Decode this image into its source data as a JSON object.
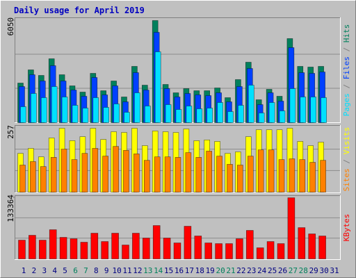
{
  "chart_data": [
    {
      "type": "bar",
      "title": "Daily usage for April 2019",
      "ylim": [
        0,
        6050
      ],
      "yticks": [
        6050
      ],
      "series": [
        {
          "name": "Hits",
          "color": "#00805c",
          "values": [
            2346,
            3128,
            2799,
            3786,
            2840,
            2181,
            1811,
            2922,
            1893,
            2469,
            1523,
            3334,
            2222,
            6050,
            2264,
            1770,
            2017,
            1893,
            1893,
            2058,
            1482,
            2552,
            3581,
            1358,
            1976,
            1564,
            4980,
            3334,
            3293,
            3334,
            null
          ]
        },
        {
          "name": "Files",
          "color": "#0040ff",
          "values": [
            2140,
            2840,
            2469,
            3375,
            2469,
            1934,
            1564,
            2675,
            1646,
            2181,
            1235,
            2963,
            1934,
            5350,
            2017,
            1523,
            1729,
            1646,
            1605,
            1770,
            1235,
            2140,
            3210,
            1070,
            1770,
            1276,
            4445,
            2963,
            2922,
            3004,
            null
          ]
        },
        {
          "name": "Pages",
          "color": "#00e0ff",
          "values": [
            947,
            1729,
            1482,
            2140,
            1523,
            1029,
            864,
            1482,
            905,
            1111,
            617,
            1770,
            988,
            4198,
            1070,
            782,
            988,
            823,
            864,
            1194,
            659,
            1029,
            2222,
            576,
            1194,
            700,
            2017,
            1523,
            1523,
            1482,
            null
          ]
        }
      ]
    },
    {
      "type": "bar",
      "ylim": [
        0,
        257
      ],
      "yticks": [
        257
      ],
      "series": [
        {
          "name": "Visits",
          "color": "#ffff00",
          "values": [
            156,
            176,
            142,
            218,
            257,
            207,
            223,
            257,
            212,
            243,
            240,
            257,
            187,
            246,
            243,
            240,
            254,
            207,
            210,
            204,
            156,
            162,
            223,
            251,
            251,
            251,
            257,
            204,
            187,
            201,
            null
          ]
        },
        {
          "name": "Sites",
          "color": "#ff8000",
          "values": [
            109,
            123,
            103,
            140,
            173,
            131,
            156,
            176,
            145,
            184,
            168,
            154,
            128,
            142,
            142,
            140,
            159,
            140,
            165,
            145,
            112,
            109,
            145,
            170,
            170,
            131,
            134,
            131,
            120,
            128,
            null
          ]
        }
      ]
    },
    {
      "type": "bar",
      "ylim": [
        0,
        133364
      ],
      "yticks": [
        133364
      ],
      "categories": [
        "1",
        "2",
        "3",
        "4",
        "5",
        "6",
        "7",
        "8",
        "9",
        "10",
        "11",
        "12",
        "13",
        "14",
        "15",
        "16",
        "17",
        "18",
        "19",
        "20",
        "21",
        "22",
        "23",
        "24",
        "25",
        "26",
        "27",
        "28",
        "29",
        "30",
        "31"
      ],
      "weekend_days": [
        "6",
        "7",
        "13",
        "14",
        "20",
        "21",
        "27",
        "28"
      ],
      "weekday_label_color": "#000080",
      "weekend_label_color": "#00805c",
      "series": [
        {
          "name": "KBytes",
          "color": "#ff0000",
          "values": [
            40917,
            51527,
            40917,
            63650,
            46980,
            43949,
            36372,
            56073,
            37888,
            56073,
            30310,
            56073,
            45465,
            72744,
            45465,
            34857,
            71228,
            50011,
            34857,
            33341,
            33341,
            43949,
            62135,
            24248,
            37888,
            33341,
            133364,
            68198,
            54557,
            50011,
            null
          ]
        }
      ]
    }
  ]
}
